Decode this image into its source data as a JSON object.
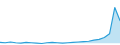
{
  "chart_data": {
    "type": "area",
    "values": [
      0.2,
      0.1,
      0.3,
      0.1,
      0.0,
      0.2,
      0.1,
      0.0,
      -0.1,
      0.1,
      0.2,
      0.1,
      0.0,
      0.1,
      0.2,
      0.3,
      0.4,
      0.5,
      0.8,
      1.0,
      1.5,
      2.5,
      9.5,
      6.0
    ],
    "color": "#2b9fd8",
    "xlim": [
      0,
      23
    ],
    "ylim": [
      -0.5,
      11.5
    ],
    "tick_labels": false,
    "grid": false
  }
}
